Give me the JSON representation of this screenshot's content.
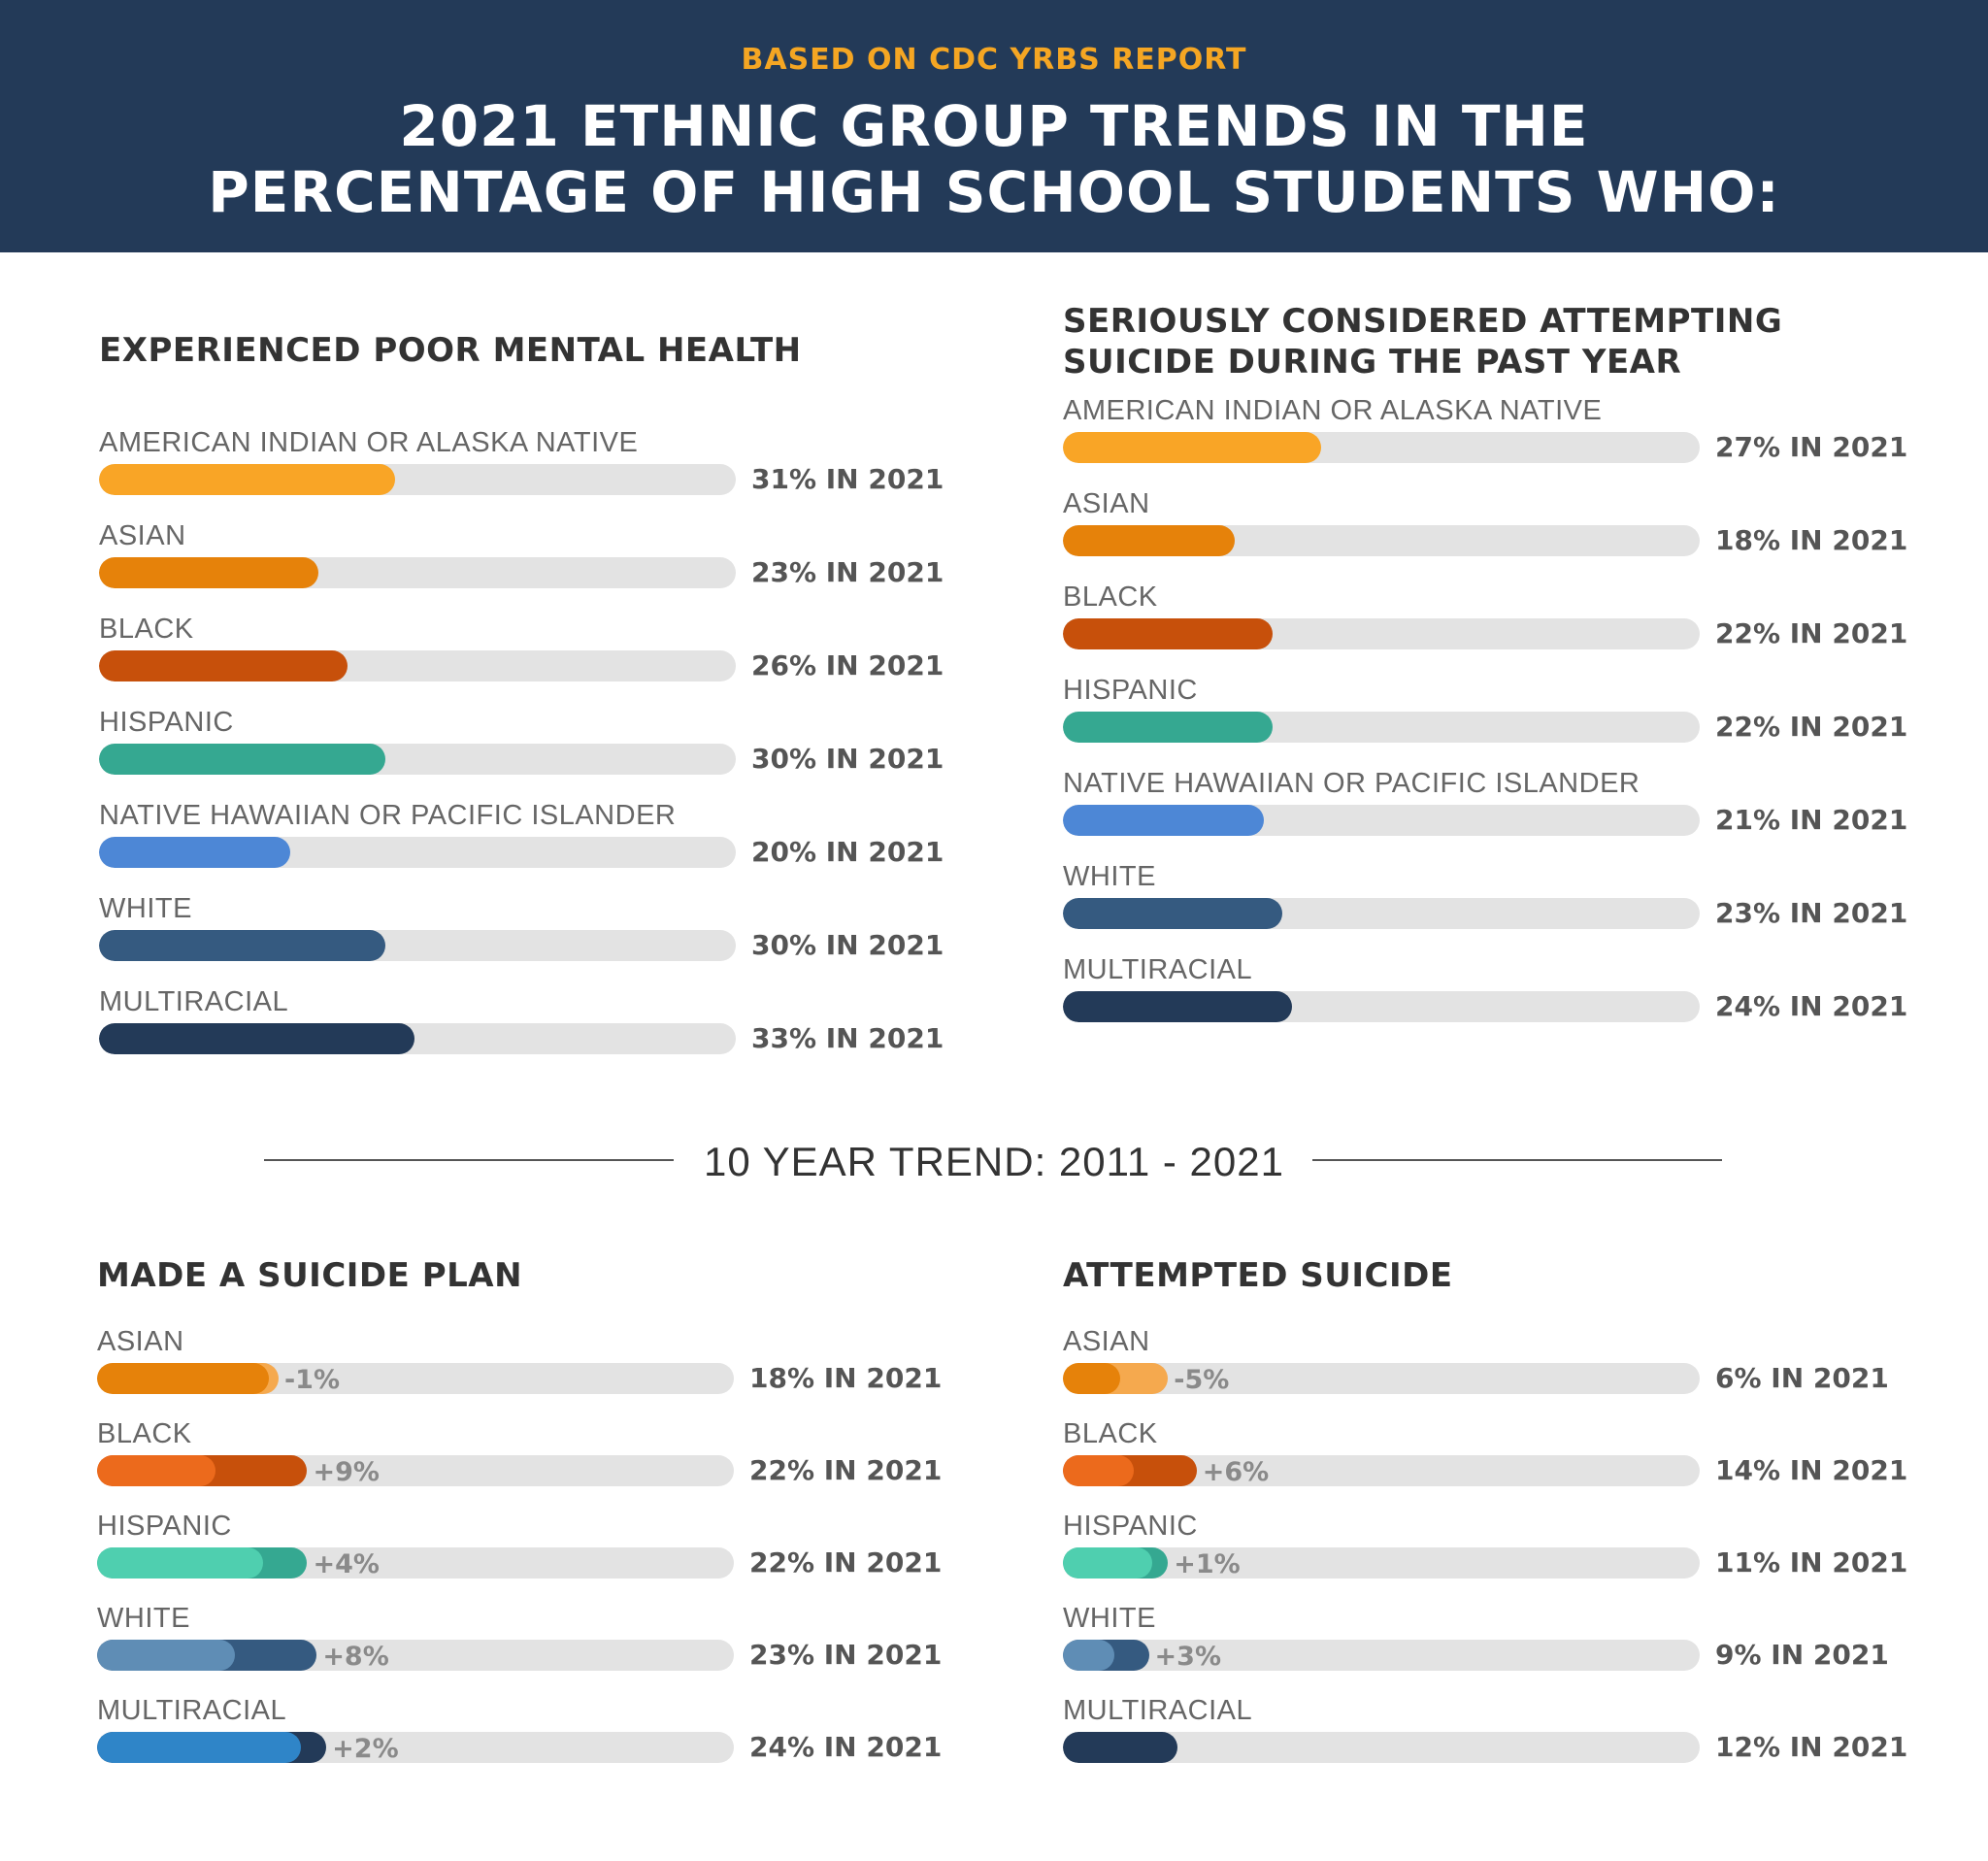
{
  "header": {
    "kicker": "BASED ON CDC YRBS REPORT",
    "title_line1": "2021 ETHNIC GROUP TRENDS IN THE",
    "title_line2": "PERCENTAGE OF HIGH SCHOOL STUDENTS WHO:"
  },
  "divider": {
    "text": "10 YEAR TREND: 2011 - 2021"
  },
  "colors": {
    "header_bg": "#233a58",
    "kicker": "#f5a623",
    "track": "#e3e3e3",
    "american_indian": "#f9a526",
    "asian": "#e6820a",
    "black": "#c7500b",
    "hispanic": "#35a891",
    "native_hawaiian": "#4d87d6",
    "white": "#355a80",
    "multiracial": "#233a58"
  },
  "chart_data": [
    {
      "type": "bar",
      "title": "EXPERIENCED POOR MENTAL HEALTH",
      "categories": [
        "AMERICAN INDIAN OR ALASKA NATIVE",
        "ASIAN",
        "BLACK",
        "HISPANIC",
        "NATIVE HAWAIIAN OR PACIFIC ISLANDER",
        "WHITE",
        "MULTIRACIAL"
      ],
      "values": [
        31,
        23,
        26,
        30,
        20,
        30,
        33
      ],
      "value_labels": [
        "31% IN 2021",
        "23% IN 2021",
        "26% IN 2021",
        "30% IN 2021",
        "20% IN 2021",
        "30% IN 2021",
        "33% IN 2021"
      ],
      "colors": [
        "#f9a526",
        "#e6820a",
        "#c7500b",
        "#35a891",
        "#4d87d6",
        "#355a80",
        "#233a58"
      ],
      "xlim": [
        0,
        100
      ]
    },
    {
      "type": "bar",
      "title": "SERIOUSLY CONSIDERED ATTEMPTING SUICIDE DURING THE PAST YEAR",
      "title_lines": [
        "SERIOUSLY CONSIDERED ATTEMPTING",
        "SUICIDE DURING THE PAST YEAR"
      ],
      "categories": [
        "AMERICAN INDIAN OR ALASKA NATIVE",
        "ASIAN",
        "BLACK",
        "HISPANIC",
        "NATIVE HAWAIIAN OR PACIFIC ISLANDER",
        "WHITE",
        "MULTIRACIAL"
      ],
      "values": [
        27,
        18,
        22,
        22,
        21,
        23,
        24
      ],
      "value_labels": [
        "27% IN 2021",
        "18% IN 2021",
        "22% IN 2021",
        "22% IN 2021",
        "21% IN 2021",
        "23% IN 2021",
        "24% IN 2021"
      ],
      "colors": [
        "#f9a526",
        "#e6820a",
        "#c7500b",
        "#35a891",
        "#4d87d6",
        "#355a80",
        "#233a58"
      ],
      "xlim": [
        0,
        100
      ]
    },
    {
      "type": "bar",
      "title": "MADE A SUICIDE PLAN",
      "categories": [
        "ASIAN",
        "BLACK",
        "HISPANIC",
        "WHITE",
        "MULTIRACIAL"
      ],
      "values": [
        18,
        22,
        22,
        23,
        24
      ],
      "changes": [
        -1,
        9,
        4,
        8,
        2
      ],
      "change_labels": [
        "-1%",
        "+9%",
        "+4%",
        "+8%",
        "+2%"
      ],
      "value_labels": [
        "18% IN 2021",
        "22% IN 2021",
        "22% IN 2021",
        "23% IN 2021",
        "24% IN 2021"
      ],
      "colors": [
        "#e6820a",
        "#c7500b",
        "#35a891",
        "#355a80",
        "#233a58"
      ],
      "colors_2011": [
        "#f5a94e",
        "#ec6a1c",
        "#4fcfaf",
        "#5f8db5",
        "#2f85c8"
      ],
      "xlim": [
        0,
        100
      ]
    },
    {
      "type": "bar",
      "title": "ATTEMPTED SUICIDE",
      "categories": [
        "ASIAN",
        "BLACK",
        "HISPANIC",
        "WHITE",
        "MULTIRACIAL"
      ],
      "values": [
        6,
        14,
        11,
        9,
        12
      ],
      "changes": [
        -5,
        6,
        1,
        3,
        null
      ],
      "change_labels": [
        "-5%",
        "+6%",
        "+1%",
        "+3%",
        ""
      ],
      "value_labels": [
        "6% IN 2021",
        "14% IN 2021",
        "11% IN 2021",
        "9% IN 2021",
        "12% IN 2021"
      ],
      "colors": [
        "#e6820a",
        "#c7500b",
        "#35a891",
        "#355a80",
        "#233a58"
      ],
      "colors_2011": [
        "#f5a94e",
        "#ec6a1c",
        "#4fcfaf",
        "#5f8db5",
        "#233a58"
      ],
      "xlim": [
        0,
        100
      ]
    }
  ]
}
